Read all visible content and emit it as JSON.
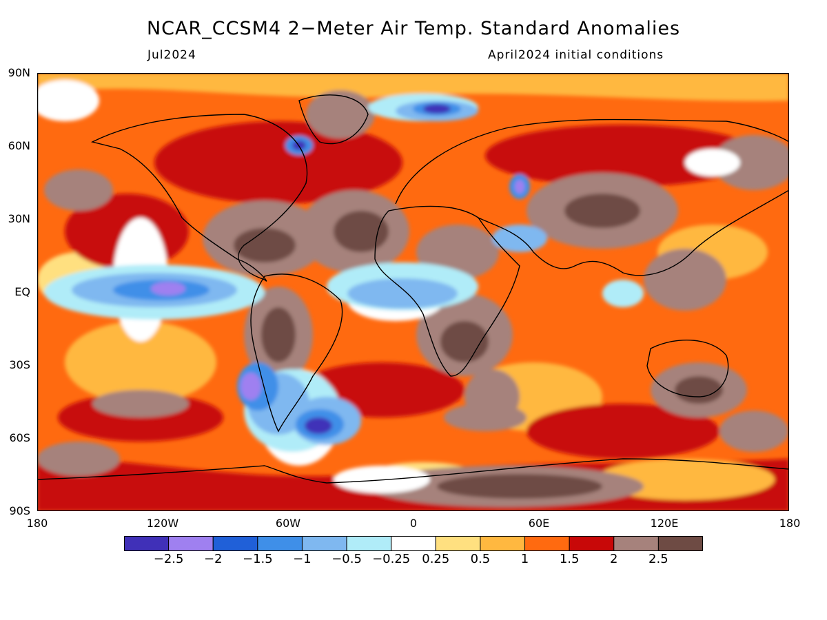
{
  "title": "NCAR_CCSM4 2−Meter Air Temp. Standard Anomalies",
  "subtitle_left": "Jul2024",
  "subtitle_right": "April2024 initial conditions",
  "lat_labels": [
    "90N",
    "60N",
    "30N",
    "EQ",
    "30S",
    "60S",
    "90S"
  ],
  "lon_labels": [
    "180",
    "120W",
    "60W",
    "0",
    "60E",
    "120E",
    "180"
  ],
  "legend": {
    "colors": [
      "#4030b8",
      "#9f80f0",
      "#2060d8",
      "#3f8fe8",
      "#7fb8f0",
      "#b0ecf8",
      "#ffffff",
      "#ffe080",
      "#ffb840",
      "#ff6a10",
      "#c80808",
      "#a6827c",
      "#6e4b44"
    ],
    "tick_labels": [
      "−2.5",
      "−2",
      "−1.5",
      "−1",
      "−0.5",
      "−0.25",
      "0.25",
      "0.5",
      "1",
      "1.5",
      "2",
      "2.5"
    ]
  }
}
